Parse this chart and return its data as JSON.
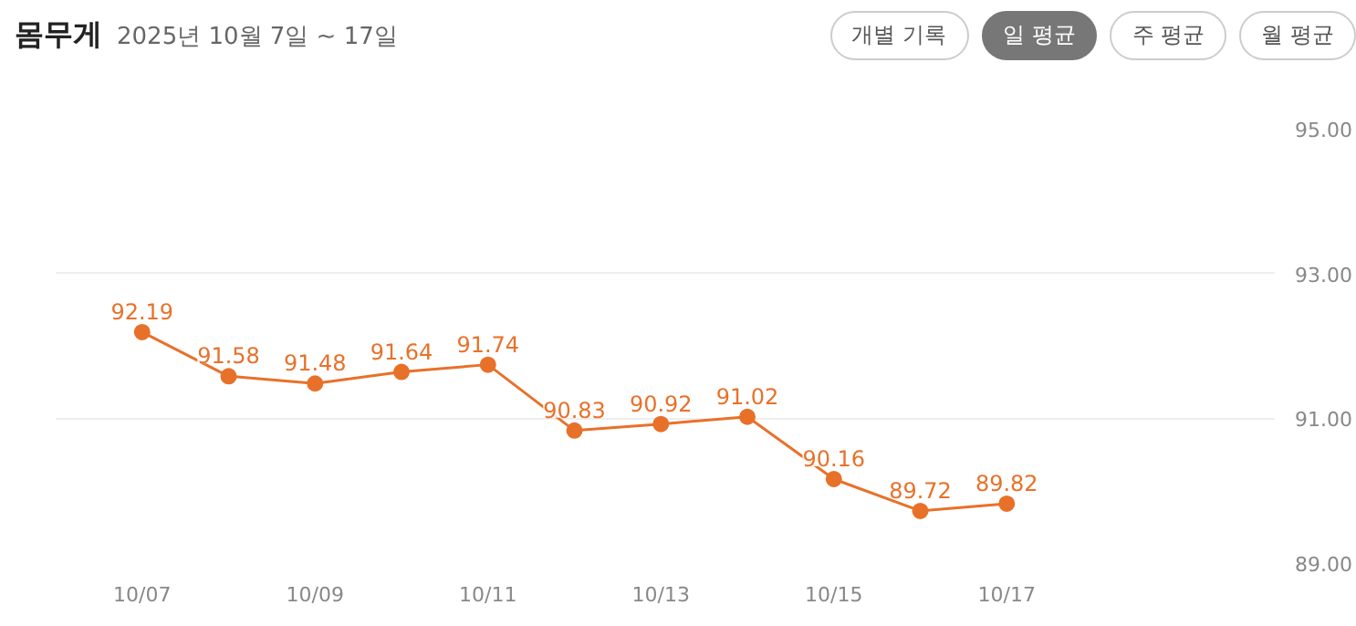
{
  "chart_data": {
    "type": "line",
    "title": "몸무게",
    "subtitle": "2025년 10월 7일 ~ 17일",
    "annotations": [
      "개별 기록",
      "일 평균",
      "주 평균",
      "월 평균"
    ],
    "categories": [
      "10/07",
      null,
      "10/09",
      null,
      "10/11",
      null,
      "10/13",
      null,
      "10/15",
      null,
      "10/17"
    ],
    "series": [
      {
        "color": "#e8712a",
        "values": [
          92.19,
          91.58,
          91.48,
          91.64,
          91.74,
          90.83,
          90.92,
          91.02,
          90.16,
          89.72,
          89.82
        ]
      }
    ],
    "ylim": [
      89,
      95
    ],
    "yticks": [
      {
        "value": 89,
        "label": "89.00"
      },
      {
        "value": 91,
        "label": "91.00"
      },
      {
        "value": 93,
        "label": "93.00"
      },
      {
        "value": 95,
        "label": "95.00"
      }
    ],
    "grid": "y",
    "data_labels": true,
    "marker": "circle",
    "line_style": "solid"
  }
}
